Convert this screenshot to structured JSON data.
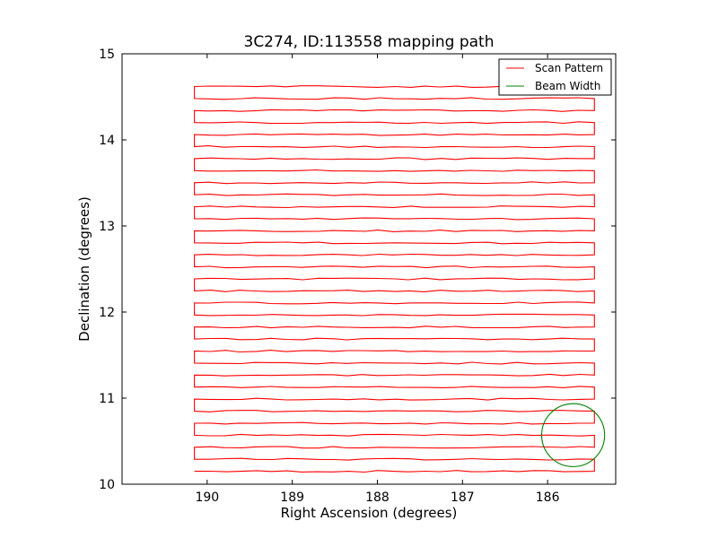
{
  "chart_data": {
    "type": "line",
    "title": "3C274, ID:113558 mapping path",
    "xlabel": "Right Ascension (degrees)",
    "ylabel": "Declination (degrees)",
    "xlim": [
      191.0,
      185.2
    ],
    "ylim": [
      10,
      15
    ],
    "x_ticks": [
      190,
      189,
      188,
      187,
      186
    ],
    "x_tick_labels": [
      "190",
      "189",
      "188",
      "187",
      "186"
    ],
    "y_ticks": [
      10,
      11,
      12,
      13,
      14,
      15
    ],
    "y_tick_labels": [
      "10",
      "11",
      "12",
      "13",
      "14",
      "15"
    ],
    "grid": false,
    "legend_position": "top-right",
    "series": [
      {
        "name": "Scan Pattern",
        "color": "#ff0000",
        "scan_rows": {
          "dec_start": 10.15,
          "dec_end": 14.62,
          "count": 33,
          "ra_west_edge": 190.15,
          "ra_east_edge": 185.45
        },
        "x": [
          190.1,
          185.5,
          185.4,
          190.1,
          185.45,
          185.4,
          190.1,
          185.5,
          185.45,
          190.1,
          185.5,
          185.4,
          190.1,
          185.45,
          185.5,
          190.1,
          185.5
        ],
        "y": [
          10.14,
          10.3,
          10.43,
          10.57,
          10.72,
          10.85,
          11.0,
          11.14,
          11.28,
          11.43,
          11.58,
          11.72,
          11.86,
          12.0,
          12.14,
          12.29,
          12.43
        ]
      },
      {
        "name": "Beam Width",
        "color": "#008000",
        "center": [
          185.7,
          10.57
        ],
        "radius_deg": 0.37
      }
    ],
    "legend": [
      {
        "label": "Scan Pattern",
        "color": "#ff0000"
      },
      {
        "label": "Beam Width",
        "color": "#008000"
      }
    ]
  }
}
